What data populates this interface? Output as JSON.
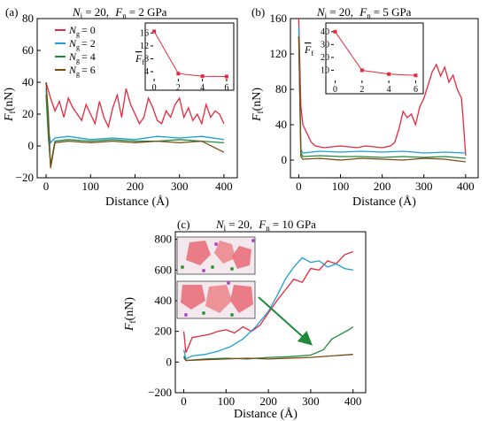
{
  "colors": {
    "ng0": "#e8283c",
    "ng2": "#1f9fd6",
    "ng4": "#1f8a3a",
    "ng6": "#7a4a12",
    "inset_line": "#e8283c",
    "arrow": "#1f8a3a"
  },
  "panels": [
    {
      "id": "a",
      "tag": "(a)",
      "title_ni": "N",
      "title_ni_sub": "i",
      "title_ni_val": "= 20,",
      "title_fn": "F",
      "title_fn_sub": "n",
      "title_fn_val": "= 2 GPa"
    },
    {
      "id": "b",
      "tag": "(b)",
      "title_ni": "N",
      "title_ni_sub": "i",
      "title_ni_val": "= 20,",
      "title_fn": "F",
      "title_fn_sub": "n",
      "title_fn_val": "= 5 GPa"
    },
    {
      "id": "c",
      "tag": "(c)",
      "title_ni": "N",
      "title_ni_sub": "i",
      "title_ni_val": "= 20,",
      "title_fn": "F",
      "title_fn_sub": "n",
      "title_fn_val": "= 10 GPa"
    }
  ],
  "axis_labels": {
    "x": "Distance (Å)",
    "y_main": "F",
    "y_sub": "f",
    "y_unit": "(nN)",
    "inset_y_main": "F",
    "inset_y_sub": "f"
  },
  "legend": {
    "entries": [
      {
        "main": "N",
        "sub": "g",
        "val": "= 0"
      },
      {
        "main": "N",
        "sub": "g",
        "val": "= 2"
      },
      {
        "main": "N",
        "sub": "g",
        "val": "= 4"
      },
      {
        "main": "N",
        "sub": "g",
        "val": "= 6"
      }
    ]
  },
  "chart_data": [
    {
      "type": "line",
      "panel": "a",
      "xlim": [
        -20,
        430
      ],
      "ylim": [
        -20,
        80
      ],
      "xticks": [
        0,
        100,
        200,
        300,
        400
      ],
      "yticks": [
        -20,
        0,
        20,
        40,
        60,
        80
      ],
      "tick_labels_x": [
        "0",
        "100",
        "200",
        "300",
        "400"
      ],
      "tick_labels_y": [
        "−20",
        "0",
        "20",
        "40",
        "60",
        "80"
      ],
      "series": [
        {
          "name": "Ng = 0",
          "color_key": "ng0",
          "x": [
            0,
            5,
            10,
            20,
            30,
            40,
            50,
            60,
            70,
            80,
            90,
            100,
            110,
            120,
            130,
            140,
            150,
            160,
            170,
            180,
            190,
            200,
            210,
            220,
            230,
            240,
            250,
            260,
            270,
            280,
            290,
            300,
            310,
            320,
            330,
            340,
            350,
            360,
            370,
            380,
            390,
            400
          ],
          "y": [
            40,
            35,
            30,
            22,
            28,
            18,
            30,
            24,
            20,
            16,
            26,
            20,
            14,
            28,
            18,
            12,
            24,
            32,
            18,
            36,
            26,
            20,
            14,
            18,
            30,
            24,
            16,
            14,
            22,
            18,
            26,
            30,
            18,
            24,
            16,
            20,
            14,
            26,
            18,
            22,
            20,
            14
          ]
        },
        {
          "name": "Ng = 2",
          "color_key": "ng2",
          "x": [
            0,
            5,
            10,
            20,
            50,
            100,
            150,
            200,
            250,
            300,
            350,
            400
          ],
          "y": [
            36,
            10,
            2,
            5,
            6,
            4,
            5,
            4,
            6,
            5,
            6,
            4
          ]
        },
        {
          "name": "Ng = 4",
          "color_key": "ng4",
          "x": [
            0,
            5,
            10,
            20,
            50,
            100,
            150,
            200,
            250,
            300,
            350,
            400
          ],
          "y": [
            32,
            6,
            -12,
            3,
            4,
            3,
            4,
            3,
            3,
            4,
            3,
            2
          ]
        },
        {
          "name": "Ng = 6",
          "color_key": "ng6",
          "x": [
            0,
            5,
            10,
            20,
            50,
            100,
            150,
            200,
            250,
            300,
            350,
            400
          ],
          "y": [
            40,
            20,
            -14,
            2,
            3,
            2,
            3,
            2,
            3,
            2,
            3,
            -4
          ]
        }
      ],
      "inset": {
        "xlim": [
          -0.3,
          6.3
        ],
        "ylim": [
          1,
          18
        ],
        "xticks": [
          0,
          2,
          4,
          6
        ],
        "yticks": [
          4,
          8,
          12,
          16
        ],
        "tick_labels_x": [
          "0",
          "2",
          "4",
          "6"
        ],
        "tick_labels_y": [
          "4",
          "8",
          "12",
          "16"
        ],
        "x": [
          0,
          2,
          4,
          6
        ],
        "y": [
          16.5,
          3.4,
          2.6,
          2.5
        ]
      }
    },
    {
      "type": "line",
      "panel": "b",
      "xlim": [
        -20,
        430
      ],
      "ylim": [
        -20,
        160
      ],
      "xticks": [
        0,
        100,
        200,
        300,
        400
      ],
      "yticks": [
        0,
        40,
        80,
        120,
        160
      ],
      "tick_labels_x": [
        "0",
        "100",
        "200",
        "300",
        "400"
      ],
      "tick_labels_y": [
        "0",
        "40",
        "80",
        "120",
        "160"
      ],
      "series": [
        {
          "name": "Ng = 0",
          "color_key": "ng0",
          "x": [
            0,
            5,
            10,
            20,
            30,
            40,
            60,
            80,
            100,
            120,
            140,
            160,
            180,
            200,
            220,
            230,
            240,
            250,
            260,
            270,
            280,
            290,
            300,
            310,
            320,
            330,
            340,
            350,
            360,
            370,
            380,
            390,
            395,
            400
          ],
          "y": [
            160,
            60,
            40,
            30,
            20,
            16,
            14,
            15,
            16,
            15,
            14,
            16,
            15,
            14,
            16,
            20,
            35,
            55,
            48,
            52,
            40,
            60,
            70,
            85,
            100,
            108,
            95,
            105,
            88,
            96,
            80,
            70,
            40,
            5
          ]
        },
        {
          "name": "Ng = 2",
          "color_key": "ng2",
          "x": [
            0,
            5,
            10,
            50,
            100,
            150,
            200,
            250,
            300,
            350,
            400
          ],
          "y": [
            150,
            12,
            8,
            10,
            9,
            10,
            9,
            10,
            8,
            9,
            8
          ]
        },
        {
          "name": "Ng = 4",
          "color_key": "ng4",
          "x": [
            0,
            5,
            10,
            50,
            100,
            150,
            200,
            250,
            300,
            350,
            400
          ],
          "y": [
            140,
            8,
            4,
            5,
            4,
            4,
            3,
            4,
            3,
            4,
            2
          ]
        },
        {
          "name": "Ng = 6",
          "color_key": "ng6",
          "x": [
            0,
            5,
            10,
            50,
            100,
            150,
            200,
            250,
            300,
            350,
            400
          ],
          "y": [
            140,
            4,
            1,
            2,
            0,
            2,
            1,
            0,
            2,
            1,
            -2
          ]
        }
      ],
      "inset": {
        "xlim": [
          -0.3,
          6.3
        ],
        "ylim": [
          0,
          44
        ],
        "xticks": [
          0,
          2,
          4,
          6
        ],
        "yticks": [
          10,
          20,
          30,
          40
        ],
        "tick_labels_x": [
          "0",
          "2",
          "4",
          "6"
        ],
        "tick_labels_y": [
          "10",
          "20",
          "30",
          "40"
        ],
        "x": [
          0,
          2,
          4,
          6
        ],
        "y": [
          40,
          10,
          7,
          6
        ]
      }
    },
    {
      "type": "line",
      "panel": "c",
      "xlim": [
        -20,
        430
      ],
      "ylim": [
        -200,
        850
      ],
      "xticks": [
        0,
        100,
        200,
        300,
        400
      ],
      "yticks": [
        -200,
        0,
        200,
        400,
        600,
        800
      ],
      "tick_labels_x": [
        "0",
        "100",
        "200",
        "300",
        "400"
      ],
      "tick_labels_y": [
        "−200",
        "0",
        "200",
        "400",
        "600",
        "800"
      ],
      "series": [
        {
          "name": "Ng = 0",
          "color_key": "ng0",
          "x": [
            0,
            5,
            20,
            40,
            60,
            80,
            100,
            120,
            140,
            160,
            180,
            200,
            220,
            240,
            260,
            280,
            300,
            320,
            340,
            360,
            380,
            400
          ],
          "y": [
            200,
            60,
            160,
            170,
            180,
            200,
            210,
            190,
            230,
            200,
            240,
            320,
            400,
            470,
            540,
            520,
            610,
            600,
            660,
            640,
            700,
            720
          ]
        },
        {
          "name": "Ng = 2",
          "color_key": "ng2",
          "x": [
            0,
            5,
            20,
            50,
            80,
            110,
            140,
            170,
            200,
            220,
            240,
            260,
            280,
            300,
            320,
            340,
            360,
            380,
            400
          ],
          "y": [
            80,
            20,
            40,
            50,
            70,
            100,
            150,
            230,
            330,
            430,
            540,
            620,
            680,
            650,
            660,
            620,
            640,
            610,
            600
          ]
        },
        {
          "name": "Ng = 4",
          "color_key": "ng4",
          "x": [
            0,
            5,
            50,
            100,
            150,
            200,
            250,
            300,
            330,
            350,
            370,
            390,
            400
          ],
          "y": [
            40,
            10,
            20,
            25,
            20,
            30,
            35,
            45,
            80,
            150,
            180,
            210,
            230
          ]
        },
        {
          "name": "Ng = 6",
          "color_key": "ng6",
          "x": [
            0,
            5,
            50,
            100,
            150,
            200,
            250,
            300,
            350,
            400
          ],
          "y": [
            30,
            10,
            15,
            20,
            25,
            20,
            25,
            30,
            40,
            50
          ]
        }
      ]
    }
  ]
}
